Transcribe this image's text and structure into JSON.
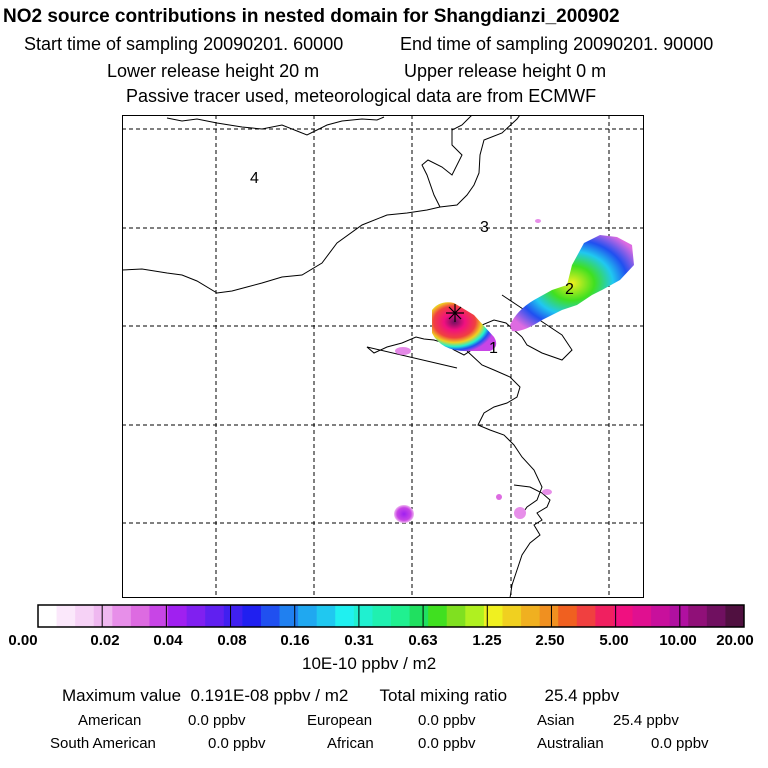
{
  "header": {
    "title": "NO2 source contributions in nested domain for Shangdianzi_200902",
    "start_time": "Start time of sampling 20090201. 60000",
    "end_time": "End time of sampling 20090201. 90000",
    "lower_release": "Lower release height   20 m",
    "upper_release": "Upper release height    0 m",
    "note": "Passive tracer used, meteorological data are from ECMWF"
  },
  "map": {
    "region_labels": [
      "1",
      "2",
      "3",
      "4"
    ]
  },
  "colorbar": {
    "labels": [
      "0.00",
      "0.02",
      "0.04",
      "0.08",
      "0.16",
      "0.31",
      "0.63",
      "1.25",
      "2.50",
      "5.00",
      "10.00",
      "20.00"
    ],
    "colors": [
      "#ffffff",
      "#fbe8fb",
      "#f6d2f6",
      "#efb8f0",
      "#e78fe9",
      "#dd6be1",
      "#c845e6",
      "#a020f0",
      "#8020f0",
      "#6020f0",
      "#4020f0",
      "#2020f0",
      "#2050f0",
      "#2080f0",
      "#20a8f0",
      "#20c8f0",
      "#20f0f0",
      "#20f0d0",
      "#20f0b0",
      "#20f090",
      "#20e060",
      "#40e020",
      "#80e020",
      "#b0f020",
      "#f0f020",
      "#f0d020",
      "#f0b020",
      "#f09020",
      "#f06020",
      "#f04040",
      "#f02060",
      "#f01080",
      "#e01090",
      "#c8109c",
      "#b010a0",
      "#901078",
      "#701060",
      "#501040"
    ],
    "units": "10E-10 ppbv / m2"
  },
  "summary": {
    "max_label": "Maximum value",
    "max_value": "0.191E-08 ppbv / m2",
    "total_label": "Total mixing ratio",
    "total_value": "25.4 ppbv"
  },
  "regions": [
    {
      "name": "American",
      "value": "0.0 ppbv"
    },
    {
      "name": "European",
      "value": "0.0 ppbv"
    },
    {
      "name": "Asian",
      "value": "25.4 ppbv"
    },
    {
      "name": "South American",
      "value": "0.0 ppbv"
    },
    {
      "name": "African",
      "value": "0.0 ppbv"
    },
    {
      "name": "Australian",
      "value": "0.0 ppbv"
    }
  ]
}
